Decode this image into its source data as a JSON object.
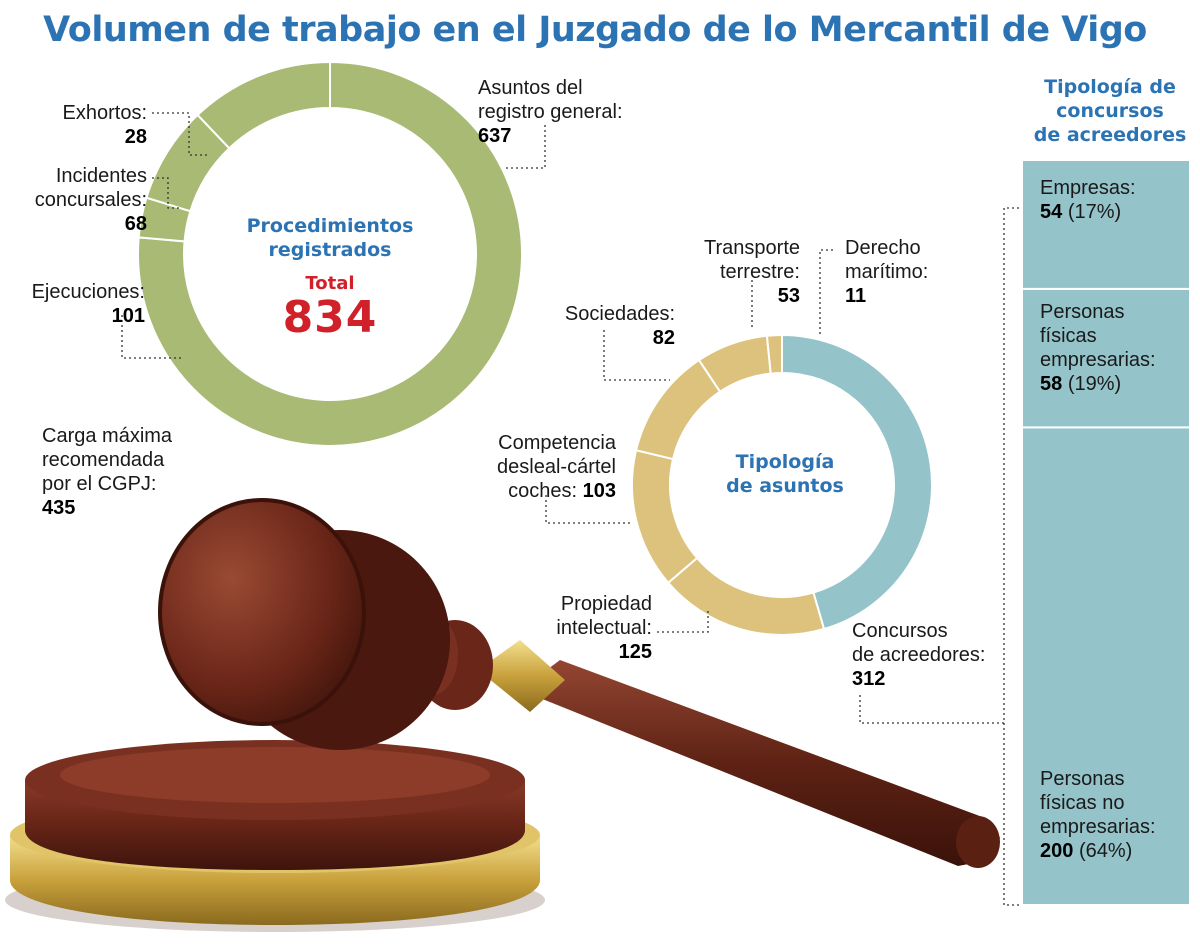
{
  "title": "Volumen de trabajo en el Juzgado de lo Mercantil de Vigo",
  "colors": {
    "title_blue": "#2c73b4",
    "total_red": "#d0202a",
    "ring_green": "#a8ba74",
    "ring_tan": "#dcc27c",
    "ring_blue": "#94c3ca",
    "gavel_brown": "#6e2a1c",
    "gavel_gold": "#d4b24c"
  },
  "chart_data": [
    {
      "type": "pie",
      "title": "Procedimientos registrados",
      "center": {
        "title_line1": "Procedimientos",
        "title_line2": "registrados",
        "total_label": "Total",
        "total_value": "834"
      },
      "slices": [
        {
          "label_line1": "Asuntos del",
          "label_line2": "registro general:",
          "value": 637
        },
        {
          "label_line1": "Exhortos:",
          "value": 28
        },
        {
          "label_line1": "Incidentes",
          "label_line2": "concursales:",
          "value": 68
        },
        {
          "label_line1": "Ejecuciones:",
          "value": 101
        }
      ],
      "annotation": {
        "line1": "Carga máxima",
        "line2": "recomendada",
        "line3": "por el CGPJ:",
        "value": 435
      }
    },
    {
      "type": "pie",
      "title": "Tipología de asuntos",
      "center": {
        "title_line1": "Tipología",
        "title_line2": "de asuntos"
      },
      "slices": [
        {
          "label_line1": "Concursos",
          "label_line2": "de acreedores:",
          "value": 312
        },
        {
          "label_line1": "Propiedad",
          "label_line2": "intelectual:",
          "value": 125
        },
        {
          "label_line1": "Competencia",
          "label_line2": "desleal-cártel",
          "label_line3": "coches:",
          "value": 103
        },
        {
          "label_line1": "Sociedades:",
          "value": 82
        },
        {
          "label_line1": "Transporte",
          "label_line2": "terrestre:",
          "value": 53
        },
        {
          "label_line1": "Derecho",
          "label_line2": "marítimo:",
          "value": 11
        }
      ]
    },
    {
      "type": "bar",
      "title": "Tipología de concursos de acreedores",
      "title_line1": "Tipología de",
      "title_line2": "concursos",
      "title_line3": "de acreedores",
      "categories": [
        "Empresas",
        "Personas físicas empresarias",
        "Personas físicas no empresarias"
      ],
      "items": [
        {
          "label_line1": "Empresas:",
          "value": 54,
          "pct": "(17%)"
        },
        {
          "label_line1": "Personas",
          "label_line2": "físicas",
          "label_line3": "empresarias:",
          "value": 58,
          "pct": "(19%)"
        },
        {
          "label_line1": "Personas",
          "label_line2": "físicas no",
          "label_line3": "empresarias:",
          "value": 200,
          "pct": "(64%)"
        }
      ]
    }
  ]
}
